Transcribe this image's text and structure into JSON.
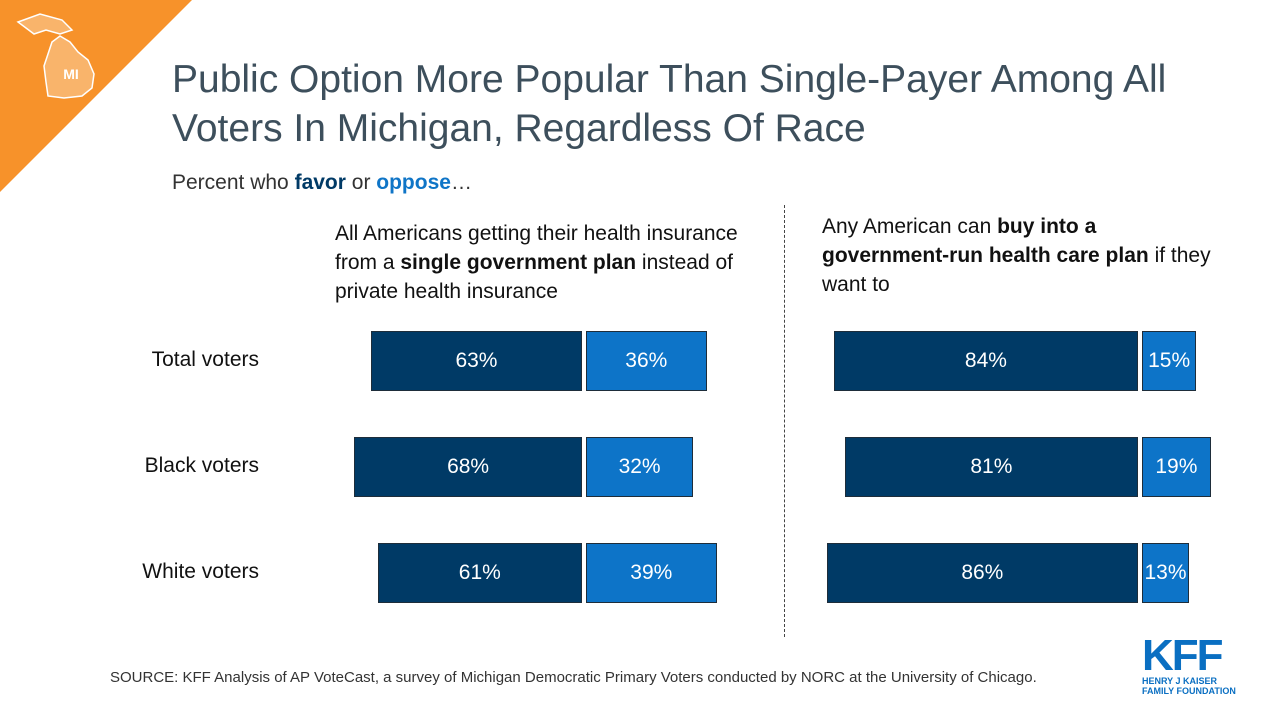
{
  "badge": {
    "state": "MI",
    "color": "#f7922a"
  },
  "title": "Public Option More Popular Than Single-Payer Among All Voters In Michigan, Regardless Of Race",
  "subtitle": {
    "prefix": "Percent who ",
    "favor": "favor",
    "middle": " or ",
    "oppose": "oppose",
    "suffix": "…"
  },
  "questions": [
    {
      "parts": [
        "All Americans getting their health insurance from a ",
        "single government plan",
        " instead of private health insurance"
      ]
    },
    {
      "parts": [
        "Any American can ",
        "buy into a government-run health care plan",
        " if they want to"
      ]
    }
  ],
  "colors": {
    "favor": "#003a66",
    "oppose": "#0d74c8"
  },
  "chart_data": [
    {
      "type": "bar",
      "categories": [
        "Total voters",
        "Black voters",
        "White voters"
      ],
      "series": [
        {
          "name": "favor",
          "values": [
            63,
            68,
            61
          ],
          "labels": [
            "63%",
            "68%",
            "61%"
          ]
        },
        {
          "name": "oppose",
          "values": [
            36,
            32,
            39
          ],
          "labels": [
            "36%",
            "32%",
            "39%"
          ]
        }
      ]
    },
    {
      "type": "bar",
      "categories": [
        "Total voters",
        "Black voters",
        "White voters"
      ],
      "series": [
        {
          "name": "favor",
          "values": [
            84,
            81,
            86
          ],
          "labels": [
            "84%",
            "81%",
            "86%"
          ]
        },
        {
          "name": "oppose",
          "values": [
            15,
            19,
            13
          ],
          "labels": [
            "15%",
            "19%",
            "13%"
          ]
        }
      ]
    }
  ],
  "source": "SOURCE: KFF Analysis of AP VoteCast, a survey of Michigan Democratic Primary Voters conducted by NORC at the University of Chicago.",
  "logo": {
    "mark": "KFF",
    "line1": "HENRY J KAISER",
    "line2": "FAMILY FOUNDATION"
  }
}
